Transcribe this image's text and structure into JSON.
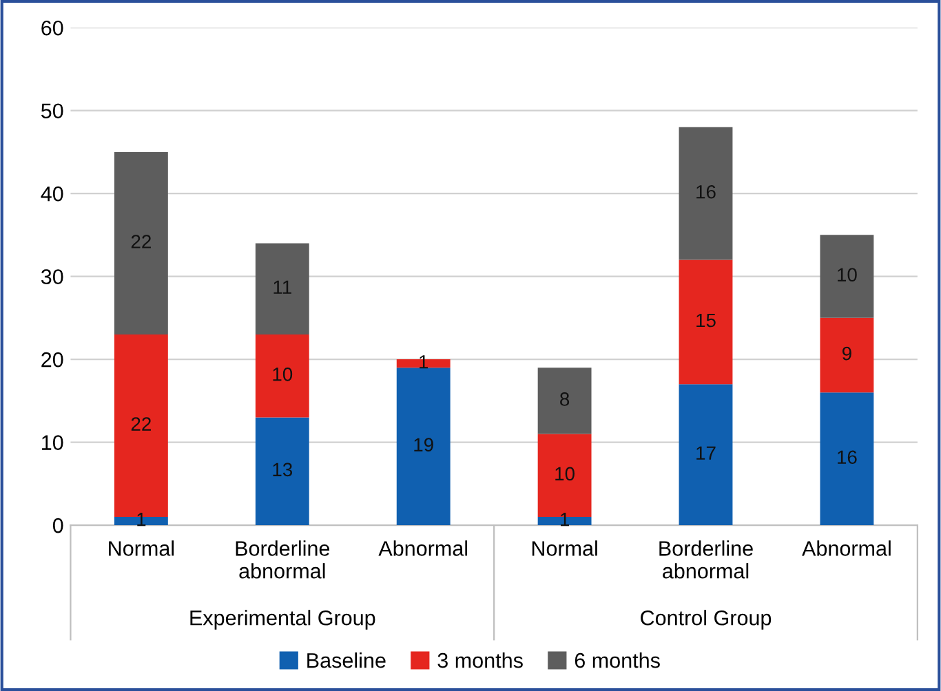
{
  "chart_data": {
    "type": "bar",
    "stacked": true,
    "categories": [
      "Normal",
      "Borderline\nabnormal",
      "Abnormal",
      "Normal",
      "Borderline\nabnormal",
      "Abnormal"
    ],
    "series": [
      {
        "name": "Baseline",
        "color": "#1060b0",
        "values": [
          1,
          13,
          19,
          1,
          17,
          16
        ]
      },
      {
        "name": "3 months",
        "color": "#e5261f",
        "values": [
          22,
          10,
          1,
          10,
          15,
          9
        ]
      },
      {
        "name": "6 months",
        "color": "#5d5d5d",
        "values": [
          22,
          11,
          null,
          8,
          16,
          10
        ]
      }
    ],
    "annotations": [
      "Experimental Group",
      "Control Group"
    ],
    "ylim": [
      0,
      60
    ],
    "yticks": [
      0,
      10,
      20,
      30,
      40,
      50,
      60
    ],
    "grid": "y",
    "legend": "bottom",
    "data_labels": true
  }
}
